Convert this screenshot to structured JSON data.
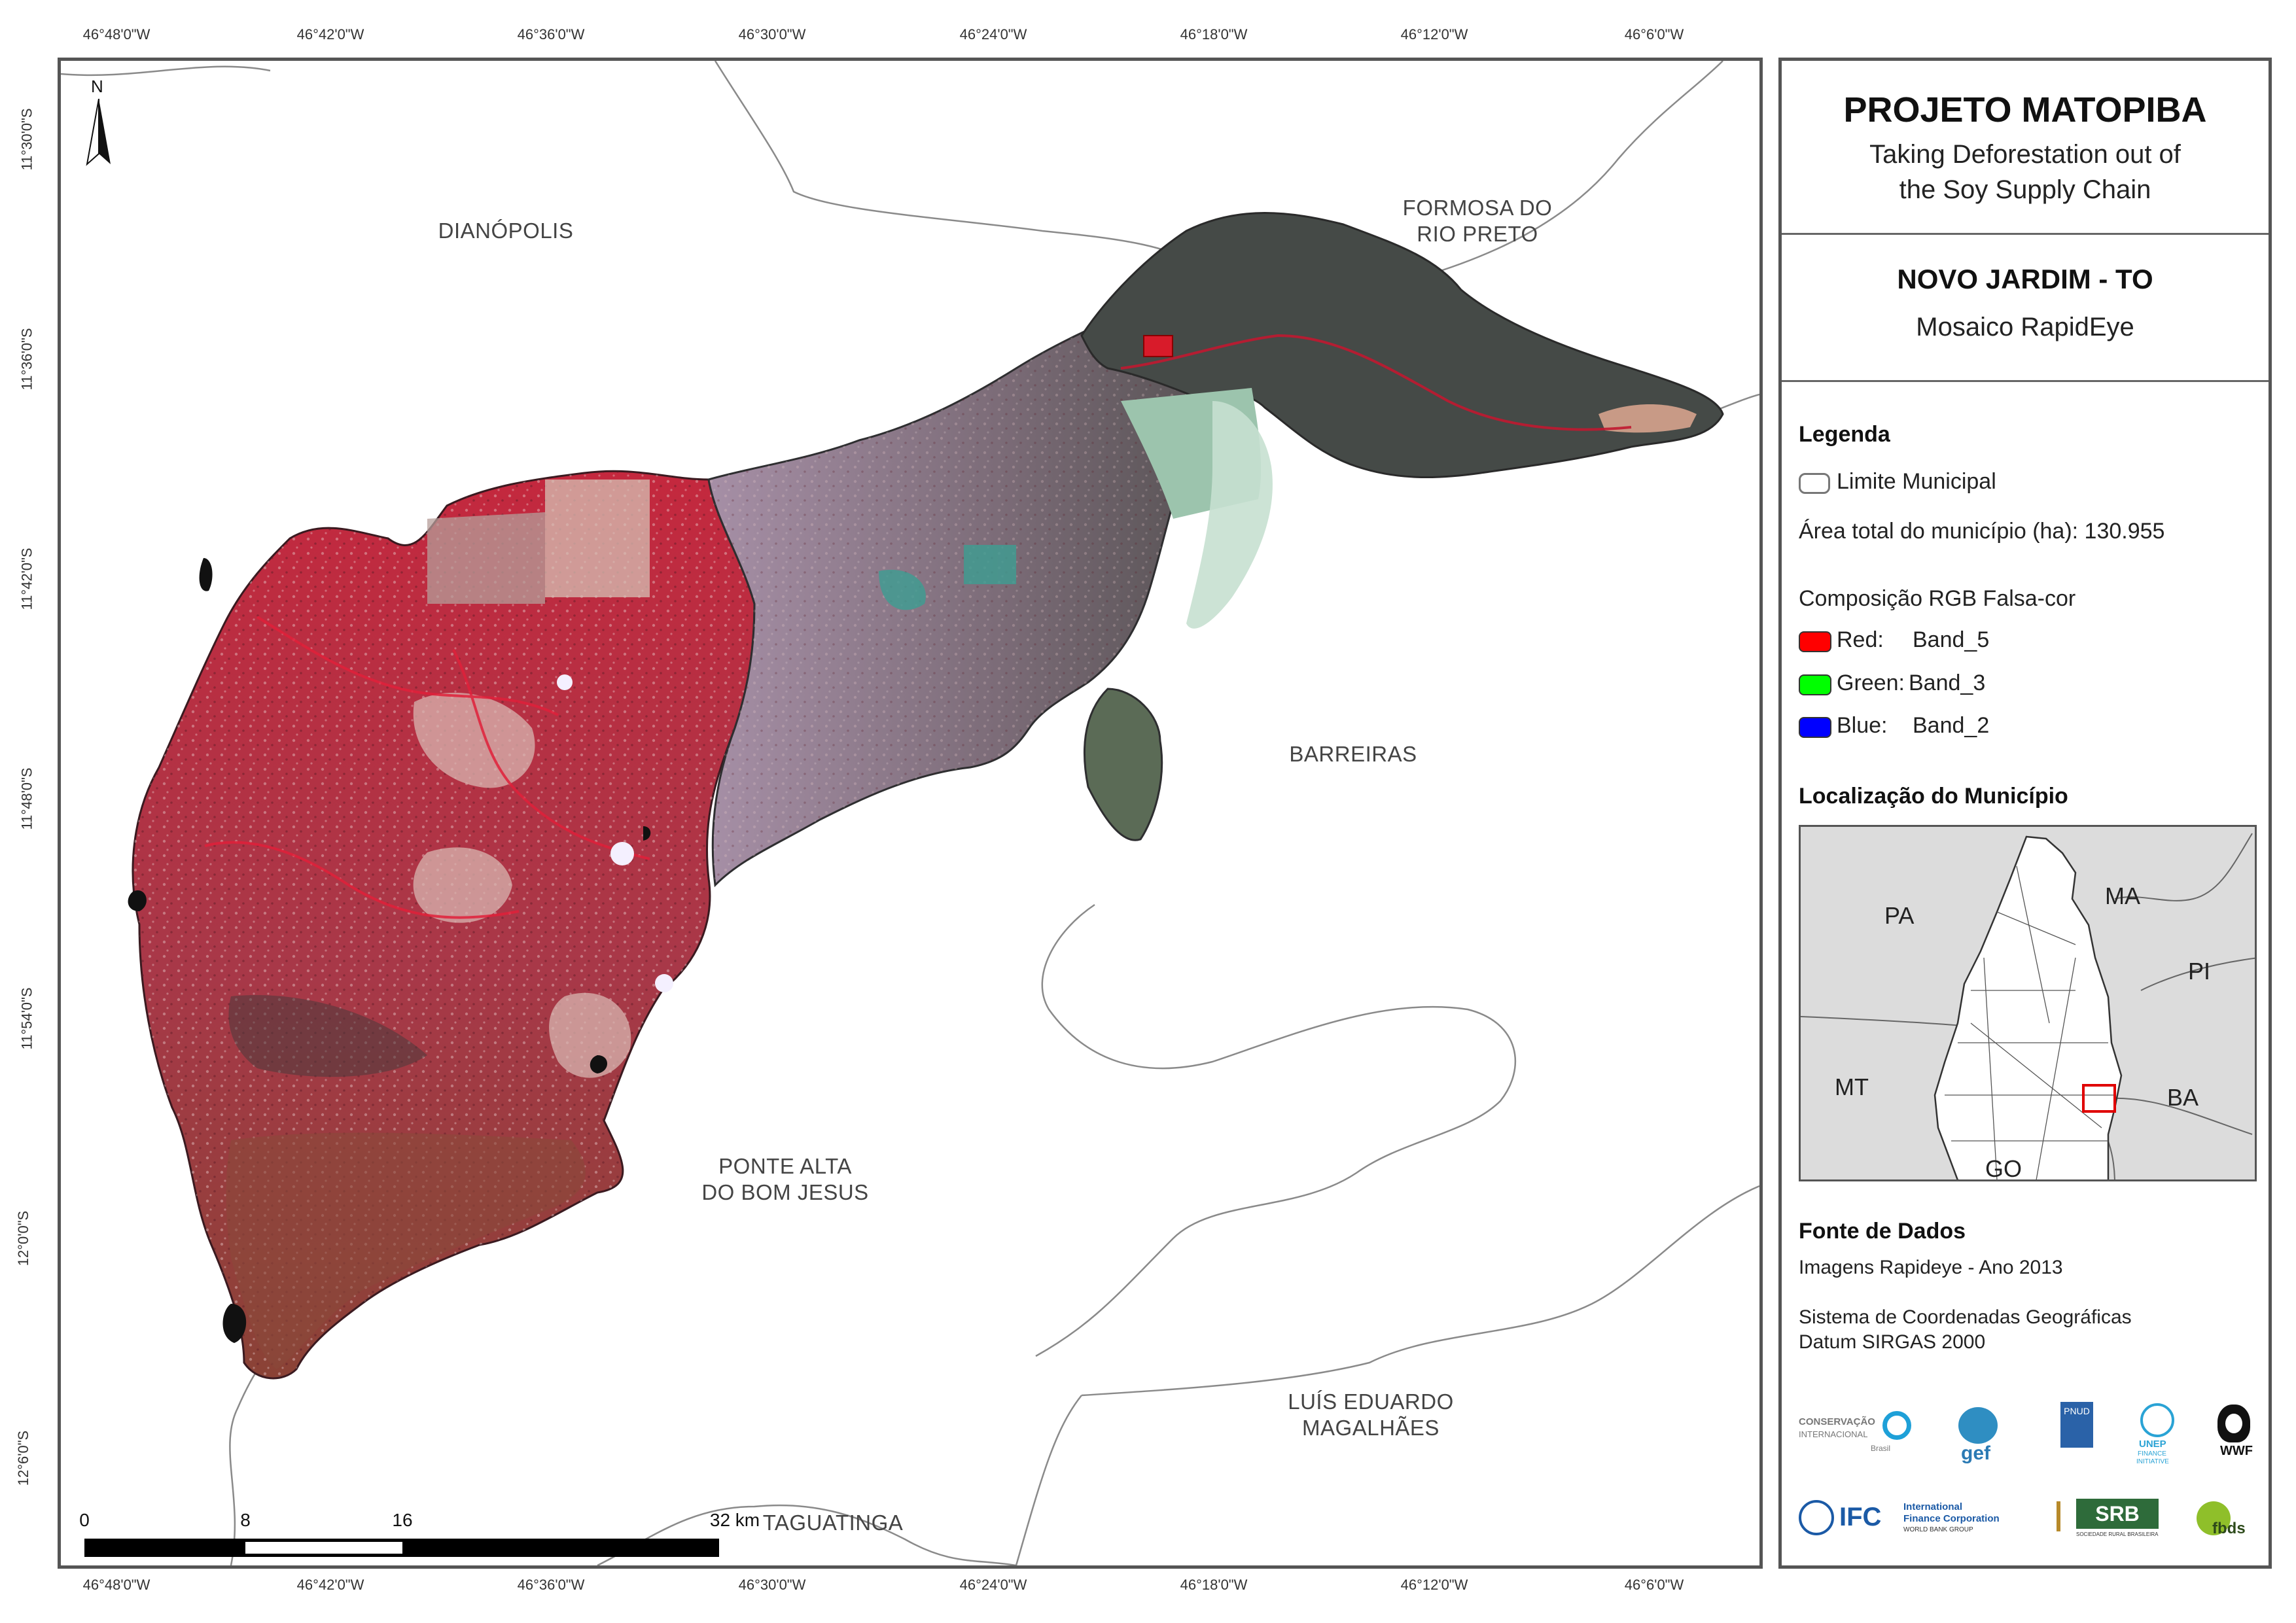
{
  "coords": {
    "top_longitudes": [
      "46°48'0\"W",
      "46°42'0\"W",
      "46°36'0\"W",
      "46°30'0\"W",
      "46°24'0\"W",
      "46°18'0\"W",
      "46°12'0\"W",
      "46°6'0\"W"
    ],
    "bottom_longitudes": [
      "46°48'0\"W",
      "46°42'0\"W",
      "46°36'0\"W",
      "46°30'0\"W",
      "46°24'0\"W",
      "46°18'0\"W",
      "46°12'0\"W",
      "46°6'0\"W"
    ],
    "left_latitudes": [
      "11°30'0\"S",
      "11°36'0\"S",
      "11°42'0\"S",
      "11°48'0\"S",
      "11°54'0\"S",
      "12°0'0\"S",
      "12°6'0\"S"
    ]
  },
  "map": {
    "north_label": "N",
    "places": {
      "dianopolis": "DIANÓPOLIS",
      "formosa_1": "FORMOSA DO",
      "formosa_2": "RIO PRETO",
      "barreiras": "BARREIRAS",
      "ponte_1": "PONTE ALTA",
      "ponte_2": "DO BOM JESUS",
      "luis_1": "LUÍS EDUARDO",
      "luis_2": "MAGALHÃES",
      "taguatinga": "TAGUATINGA"
    },
    "scale": {
      "l0": "0",
      "l1": "8",
      "l2": "16",
      "l3": "32 km"
    }
  },
  "panel": {
    "title": "PROJETO MATOPIBA",
    "subtitle_1": "Taking Deforestation out of",
    "subtitle_2": "the Soy Supply Chain",
    "municipality": "NOVO JARDIM - TO",
    "mosaic": "Mosaico RapidEye",
    "legend_heading": "Legenda",
    "limit_label": "Limite Municipal",
    "area_label": "Área total do município (ha): 130.955",
    "composition_label": "Composição RGB Falsa-cor",
    "bands": [
      {
        "label": "Red:",
        "value": "Band_5",
        "color": "#ff0000"
      },
      {
        "label": "Green:",
        "value": "Band_3",
        "color": "#00ff00"
      },
      {
        "label": "Blue:",
        "value": "Band_2",
        "color": "#0000ff"
      }
    ],
    "location_heading": "Localização do Município",
    "locator_labels": {
      "pa": "PA",
      "ma": "MA",
      "pi": "PI",
      "mt": "MT",
      "ba": "BA",
      "go": "GO"
    },
    "source_heading": "Fonte de Dados",
    "source_1": "Imagens Rapideye - Ano 2013",
    "source_2": "Sistema de Coordenadas Geográficas",
    "source_3": "Datum SIRGAS 2000",
    "logos": {
      "ci_1": "CONSERVAÇÃO",
      "ci_2": "INTERNACIONAL",
      "ci_3": "Brasil",
      "gef": "gef",
      "undp": "PNUD",
      "unep_1": "UNEP",
      "unep_2": "FINANCE",
      "unep_3": "INITIATIVE",
      "wwf": "WWF",
      "ifc": "IFC",
      "ifc_1": "International",
      "ifc_2": "Finance Corporation",
      "ifc_3": "WORLD BANK GROUP",
      "srb": "SRB",
      "srb_sub": "SOCIEDADE RURAL BRASILEIRA",
      "fbds": "fbds"
    }
  },
  "colors": {
    "vegetation_red": "#b5303f",
    "dark_green": "#3f4a44",
    "pink_lavender": "#b49aae",
    "outline": "#888888",
    "highlight": "#e00000"
  }
}
